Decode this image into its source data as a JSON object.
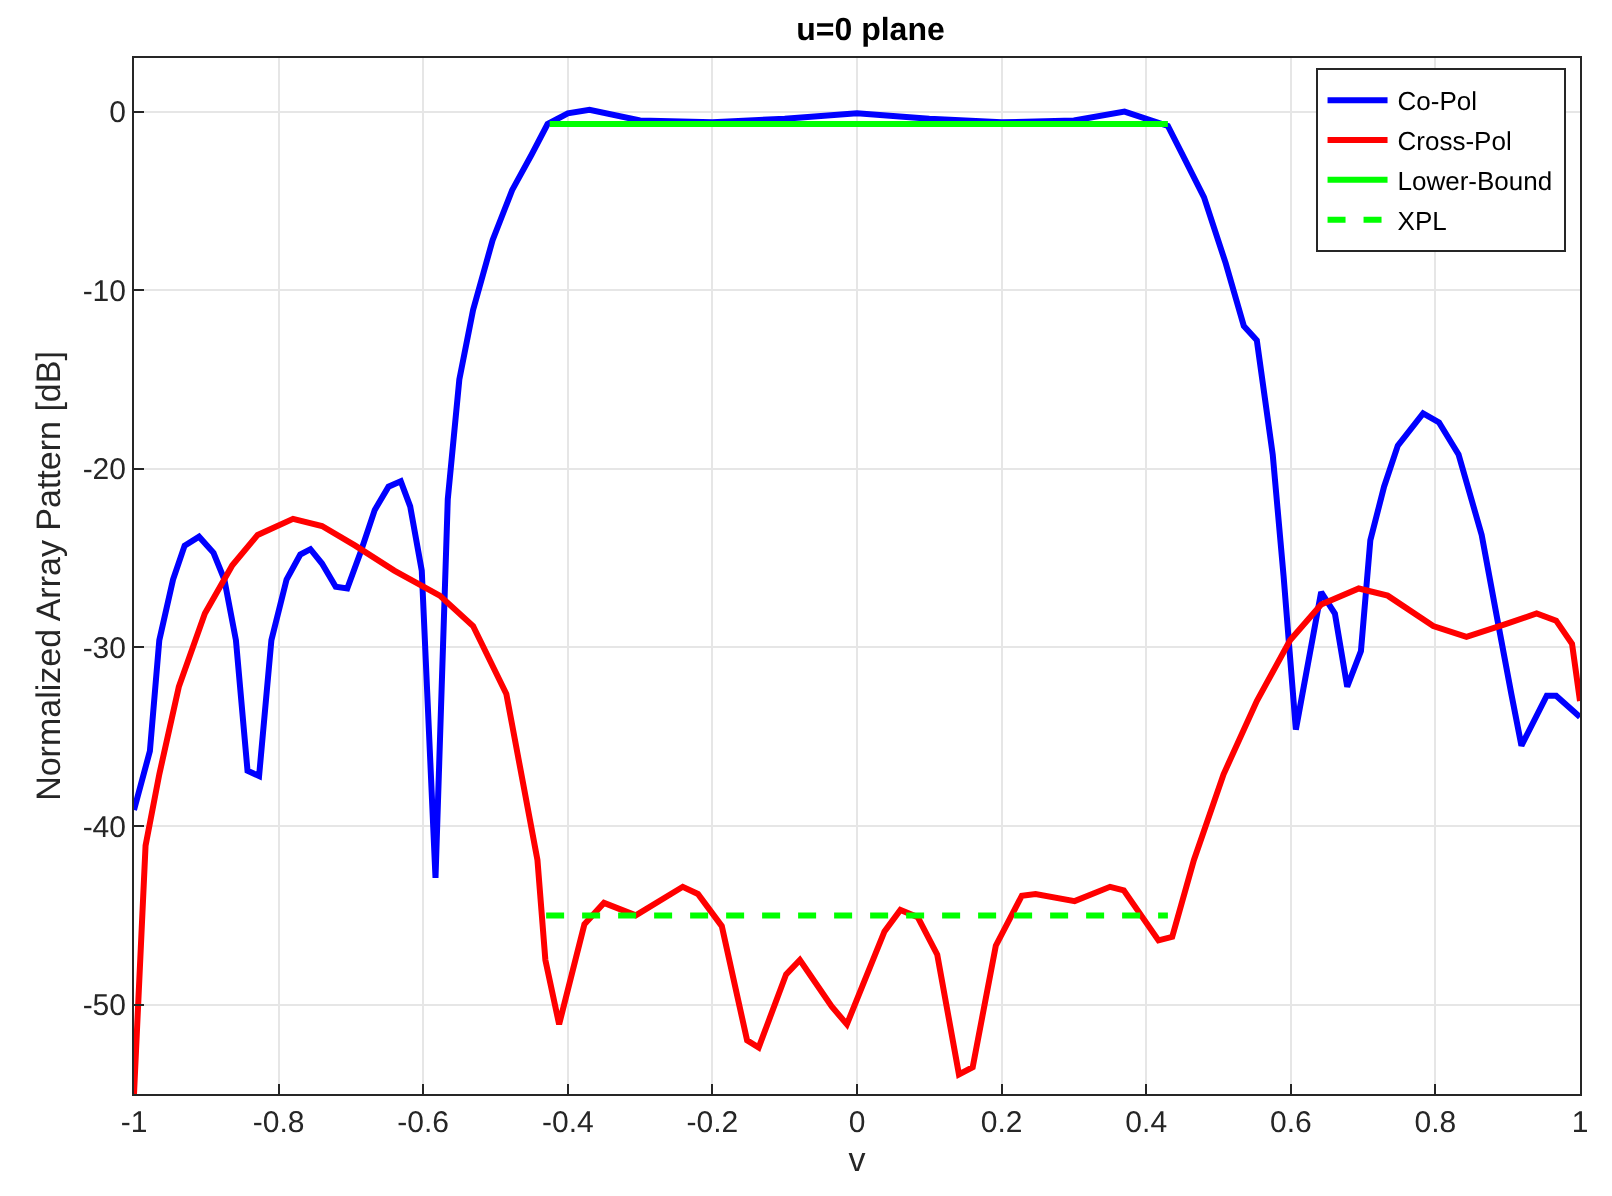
{
  "chart_data": {
    "type": "line",
    "title": "u=0 plane",
    "xlabel": "v",
    "ylabel": "Normalized Array Pattern [dB]",
    "xlim": [
      -1,
      1
    ],
    "xticks": [
      -1,
      -0.8,
      -0.6,
      -0.4,
      -0.2,
      0,
      0.2,
      0.4,
      0.6,
      0.8,
      1
    ],
    "ylim": [
      -55,
      3
    ],
    "yticks": [
      -50,
      -40,
      -30,
      -20,
      -10,
      0
    ],
    "grid": true,
    "legend": "top right",
    "marker": "none",
    "series": [
      {
        "name": "Co-Pol",
        "color": "#0000ff",
        "line_style": "solid",
        "x": [
          -1,
          -0.978,
          -0.965,
          -0.946,
          -0.93,
          -0.91,
          -0.89,
          -0.875,
          -0.859,
          -0.843,
          -0.827,
          -0.81,
          -0.789,
          -0.77,
          -0.756,
          -0.74,
          -0.721,
          -0.705,
          -0.686,
          -0.667,
          -0.648,
          -0.631,
          -0.618,
          -0.602,
          -0.583,
          -0.566,
          -0.55,
          -0.531,
          -0.504,
          -0.477,
          -0.45,
          -0.428,
          -0.4,
          -0.37,
          -0.3,
          -0.2,
          -0.1,
          0,
          0.1,
          0.2,
          0.3,
          0.37,
          0.43,
          0.45,
          0.48,
          0.51,
          0.535,
          0.553,
          0.575,
          0.59,
          0.607,
          0.642,
          0.661,
          0.678,
          0.697,
          0.71,
          0.729,
          0.748,
          0.783,
          0.805,
          0.832,
          0.864,
          0.886,
          0.905,
          0.919,
          0.954,
          0.967,
          1
        ],
        "values": [
          -39.1,
          -35.8,
          -29.6,
          -26.2,
          -24.3,
          -23.8,
          -24.7,
          -26.2,
          -29.6,
          -36.9,
          -37.2,
          -29.6,
          -26.2,
          -24.8,
          -24.5,
          -25.3,
          -26.6,
          -26.7,
          -24.6,
          -22.3,
          -21.0,
          -20.7,
          -22.1,
          -25.7,
          -42.9,
          -21.7,
          -15.0,
          -11.1,
          -7.2,
          -4.4,
          -2.4,
          -0.7,
          -0.1,
          0.1,
          -0.5,
          -0.6,
          -0.4,
          -0.1,
          -0.4,
          -0.6,
          -0.5,
          0,
          -0.8,
          -2.4,
          -4.8,
          -8.5,
          -12.0,
          -12.8,
          -19.2,
          -26.0,
          -34.6,
          -26.9,
          -28.1,
          -32.2,
          -30.2,
          -24.0,
          -21.0,
          -18.7,
          -16.9,
          -17.4,
          -19.2,
          -23.7,
          -28.5,
          -32.6,
          -35.5,
          -32.7,
          -32.7,
          -33.9
        ]
      },
      {
        "name": "Cross-Pol",
        "color": "#ff0000",
        "line_style": "solid",
        "x": [
          -1,
          -0.984,
          -0.965,
          -0.938,
          -0.902,
          -0.864,
          -0.829,
          -0.78,
          -0.74,
          -0.694,
          -0.64,
          -0.577,
          -0.531,
          -0.485,
          -0.442,
          -0.431,
          -0.412,
          -0.377,
          -0.35,
          -0.306,
          -0.241,
          -0.22,
          -0.187,
          -0.152,
          -0.136,
          -0.098,
          -0.079,
          -0.035,
          -0.014,
          0.038,
          0.06,
          0.084,
          0.111,
          0.141,
          0.16,
          0.192,
          0.228,
          0.247,
          0.301,
          0.35,
          0.369,
          0.417,
          0.436,
          0.466,
          0.507,
          0.553,
          0.599,
          0.642,
          0.694,
          0.734,
          0.797,
          0.843,
          0.897,
          0.94,
          0.967,
          0.989,
          1
        ],
        "values": [
          -55,
          -41.1,
          -37.1,
          -32.2,
          -28.1,
          -25.4,
          -23.7,
          -22.8,
          -23.2,
          -24.3,
          -25.7,
          -27.1,
          -28.8,
          -32.6,
          -41.9,
          -47.5,
          -51.1,
          -45.5,
          -44.3,
          -45.0,
          -43.4,
          -43.8,
          -45.6,
          -52.0,
          -52.4,
          -48.3,
          -47.5,
          -50.1,
          -51.1,
          -45.9,
          -44.7,
          -45.1,
          -47.2,
          -53.9,
          -53.5,
          -46.7,
          -43.9,
          -43.8,
          -44.2,
          -43.4,
          -43.6,
          -46.4,
          -46.2,
          -41.9,
          -37.1,
          -33.0,
          -29.6,
          -27.6,
          -26.7,
          -27.1,
          -28.8,
          -29.4,
          -28.7,
          -28.1,
          -28.5,
          -29.8,
          -33.0
        ]
      },
      {
        "name": "Lower-Bound",
        "color": "#00ff00",
        "line_style": "solid",
        "x": [
          -0.425,
          0.43
        ],
        "values": [
          -0.7,
          -0.7
        ]
      },
      {
        "name": "XPL",
        "color": "#00ff00",
        "line_style": "dashed",
        "x": [
          -0.43,
          0.43
        ],
        "values": [
          -45,
          -45
        ]
      }
    ]
  }
}
